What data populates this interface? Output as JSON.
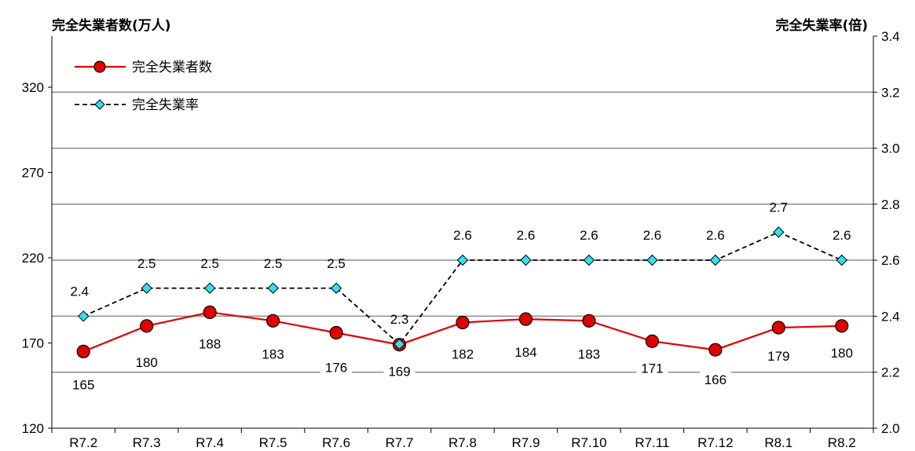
{
  "chart_data": {
    "type": "line",
    "title": "",
    "ylabel_left": "完全失業者数(万人)",
    "ylabel_right": "完全失業率(倍)",
    "xlabel": "",
    "categories": [
      "R7.2",
      "R7.3",
      "R7.4",
      "R7.5",
      "R7.6",
      "R7.7",
      "R7.8",
      "R7.9",
      "R7.10",
      "R7.11",
      "R7.12",
      "R8.1",
      "R8.2"
    ],
    "ylim_left": [
      120,
      350
    ],
    "ylim_right": [
      2.0,
      3.4
    ],
    "left_ticks": [
      "120",
      "170",
      "220",
      "270",
      "320"
    ],
    "right_ticks": [
      "2.0",
      "2.2",
      "2.4",
      "2.6",
      "2.8",
      "3.0",
      "3.2",
      "3.4"
    ],
    "grid": true,
    "legend_position": "top-left",
    "series": [
      {
        "name": "完全失業者数",
        "axis": "left",
        "color": "#e00000",
        "marker_color": "#e00000",
        "values": [
          165,
          180,
          188,
          183,
          176,
          169,
          182,
          184,
          183,
          171,
          166,
          179,
          180
        ],
        "labels": [
          "165",
          "180",
          "188",
          "183",
          "176",
          "169",
          "182",
          "184",
          "183",
          "171",
          "166",
          "179",
          "180"
        ]
      },
      {
        "name": "完全失業率",
        "axis": "right",
        "color": "#000000",
        "marker_color": "#33e0f0",
        "values": [
          2.4,
          2.5,
          2.5,
          2.5,
          2.5,
          2.3,
          2.6,
          2.6,
          2.6,
          2.6,
          2.6,
          2.7,
          2.6
        ],
        "labels": [
          "2.4",
          "2.5",
          "2.5",
          "2.5",
          "2.5",
          "2.3",
          "2.6",
          "2.6",
          "2.6",
          "2.6",
          "2.6",
          "2.7",
          "2.6"
        ]
      }
    ]
  }
}
